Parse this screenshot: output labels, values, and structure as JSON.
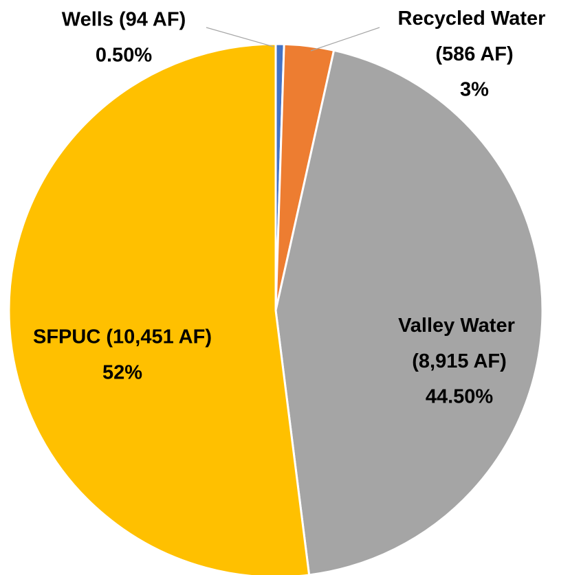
{
  "chart_data": {
    "type": "pie",
    "categories": [
      "Wells (94 AF)",
      "Recycled Water (586 AF)",
      "Valley Water (8,915 AF)",
      "SFPUC (10,451 AF)"
    ],
    "values": [
      0.5,
      3,
      44.5,
      52
    ],
    "value_labels": [
      "0.50%",
      "3%",
      "44.50%",
      "52%"
    ],
    "colors": [
      "#4472c4",
      "#ed7d31",
      "#a5a5a5",
      "#ffc000"
    ]
  }
}
